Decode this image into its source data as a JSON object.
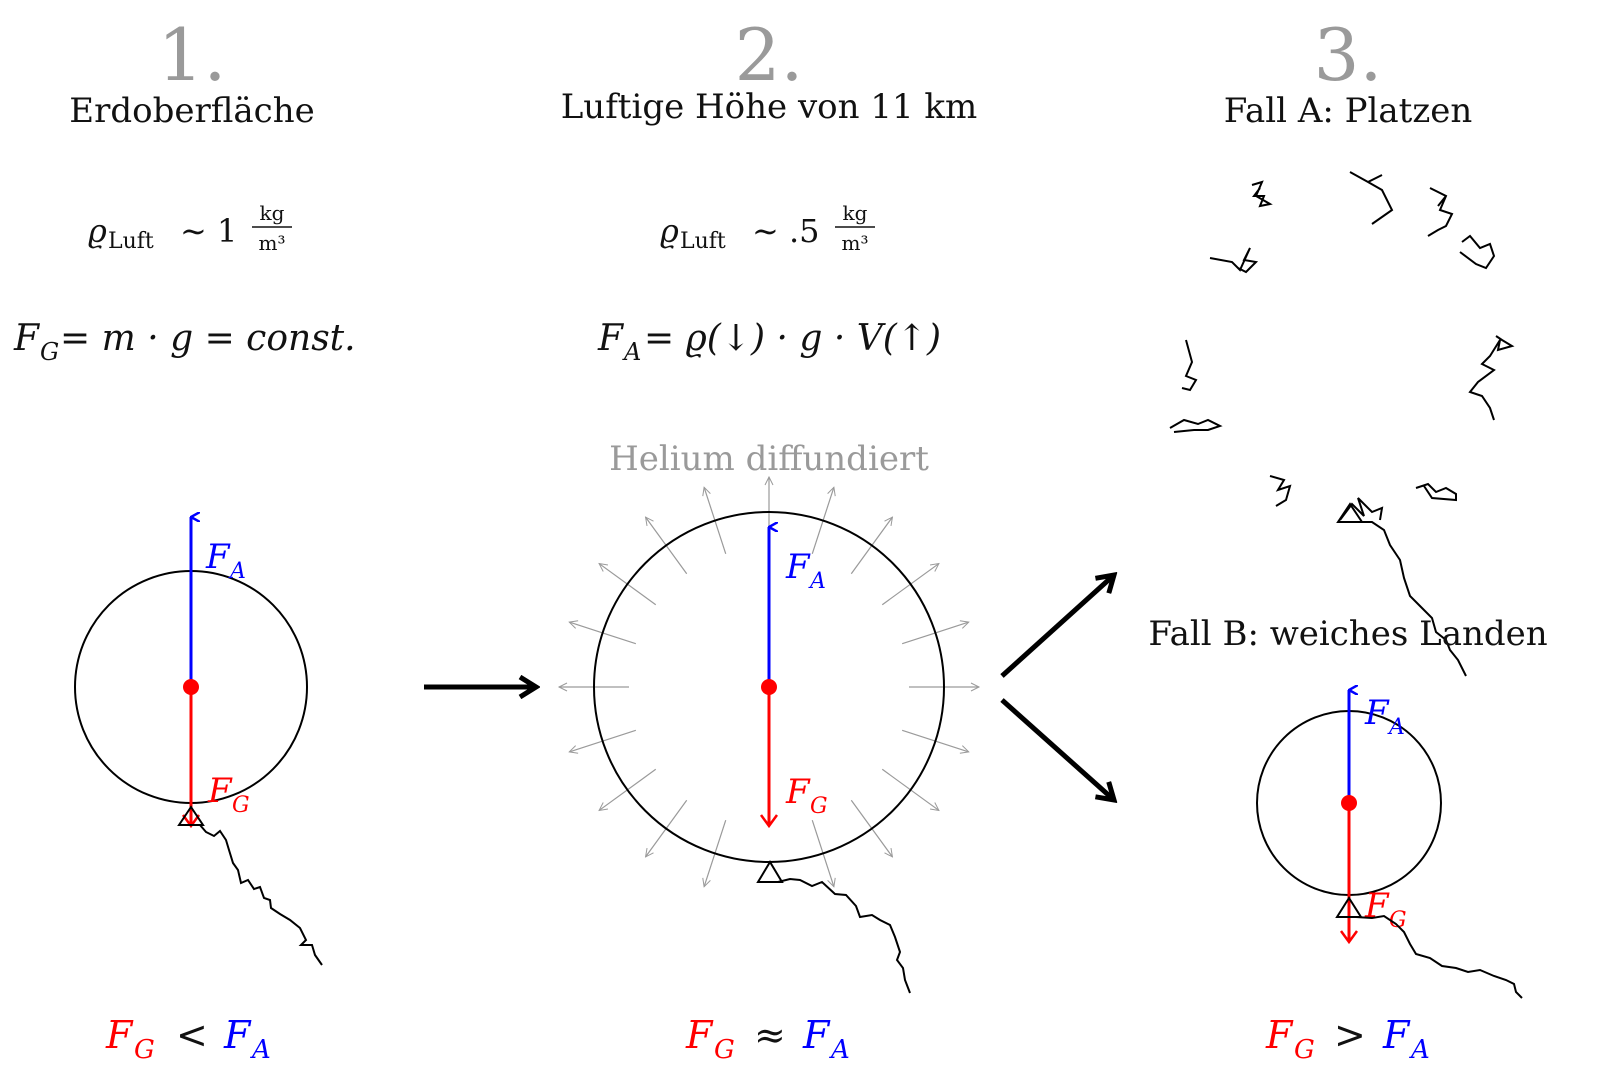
{
  "colors": {
    "text": "#111111",
    "step_number": "#9a9a9a",
    "helium": "#9a9a9a",
    "force_up": "#0000ff",
    "force_down": "#ff0000",
    "balloon": "#000000",
    "diffusion_arrows": "#9a9a9a"
  },
  "step1": {
    "number": "1.",
    "title": "Erdoberfläche",
    "density_prefix": "ϱ",
    "density_sub": "Luft",
    "density_rel": "∼ 1",
    "density_unit_num": "kg",
    "density_unit_den": "m³",
    "formula_main": "F",
    "formula_sub": "G",
    "formula_rest": " = m · g = const.",
    "label_up": "F",
    "label_up_sub": "A",
    "label_down": "F",
    "label_down_sub": "G",
    "comparison_left": "F",
    "comparison_left_sub": "G",
    "comparison_op": "<",
    "comparison_right": "F",
    "comparison_right_sub": "A"
  },
  "step2": {
    "number": "2.",
    "title": "Luftige Höhe von 11 km",
    "density_prefix": "ϱ",
    "density_sub": "Luft",
    "density_rel": "∼ .5",
    "density_unit_num": "kg",
    "density_unit_den": "m³",
    "formula_main": "F",
    "formula_sub": "A",
    "formula_rest": " = ϱ(↓) · g · V(↑)",
    "helium_label": "Helium diffundiert",
    "label_up": "F",
    "label_up_sub": "A",
    "label_down": "F",
    "label_down_sub": "G",
    "comparison_left": "F",
    "comparison_left_sub": "G",
    "comparison_op": "≈",
    "comparison_right": "F",
    "comparison_right_sub": "A"
  },
  "step3": {
    "number": "3.",
    "case_a": "Fall A: Platzen",
    "case_b": "Fall B: weiches Landen",
    "label_up": "F",
    "label_up_sub": "A",
    "label_down": "F",
    "label_down_sub": "G",
    "comparison_left": "F",
    "comparison_left_sub": "G",
    "comparison_op": ">",
    "comparison_right": "F",
    "comparison_right_sub": "A"
  }
}
